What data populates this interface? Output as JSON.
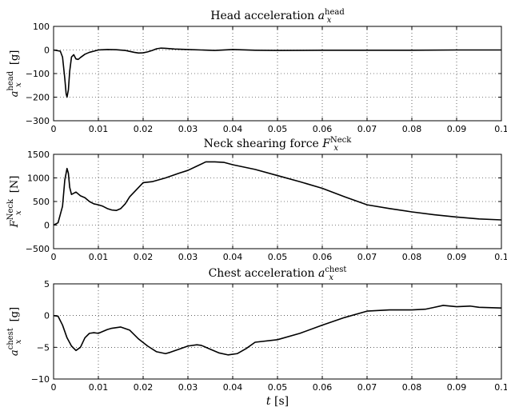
{
  "chart_data": [
    {
      "type": "line",
      "title": "Head acceleration a_x^head",
      "title_main": "Head acceleration ",
      "title_sym": "a",
      "title_sub": "x",
      "title_sup": "head",
      "ylabel": "a_x^head [g]",
      "ylabel_sym": "a",
      "ylabel_sub": "x",
      "ylabel_sup": "head",
      "ylabel_unit": "[g]",
      "xlim": [
        0,
        0.1
      ],
      "ylim": [
        -300,
        100
      ],
      "xticks": [
        0,
        0.01,
        0.02,
        0.03,
        0.04,
        0.05,
        0.06,
        0.07,
        0.08,
        0.09,
        0.1
      ],
      "xtick_labels": [
        "0",
        "0.01",
        "0.02",
        "0.03",
        "0.04",
        "0.05",
        "0.06",
        "0.07",
        "0.08",
        "0.09",
        "0.1"
      ],
      "yticks": [
        100,
        0,
        -100,
        -200,
        -300
      ],
      "ytick_labels": [
        "100",
        "0",
        "−100",
        "−200",
        "−300"
      ],
      "grid": true,
      "series": [
        {
          "x": [
            0,
            0.0015,
            0.002,
            0.0025,
            0.0028,
            0.003,
            0.0033,
            0.0036,
            0.004,
            0.0045,
            0.005,
            0.0055,
            0.006,
            0.007,
            0.008,
            0.009,
            0.01,
            0.012,
            0.014,
            0.016,
            0.018,
            0.019,
            0.02,
            0.021,
            0.022,
            0.023,
            0.024,
            0.025,
            0.027,
            0.03,
            0.033,
            0.036,
            0.04,
            0.045,
            0.05,
            0.06,
            0.07,
            0.08,
            0.09,
            0.1
          ],
          "y": [
            0,
            -5,
            -30,
            -120,
            -185,
            -200,
            -170,
            -90,
            -30,
            -20,
            -38,
            -40,
            -32,
            -18,
            -10,
            -5,
            0,
            2,
            1,
            -2,
            -10,
            -13,
            -12,
            -8,
            -2,
            5,
            8,
            7,
            4,
            2,
            0,
            -2,
            2,
            -1,
            -2,
            -1,
            -1,
            -1,
            0,
            0
          ]
        }
      ]
    },
    {
      "type": "line",
      "title": "Neck shearing force F_x^Neck",
      "title_main": "Neck shearing force ",
      "title_sym": "F",
      "title_sub": "x",
      "title_sup": "Neck",
      "ylabel": "F_x^Neck [N]",
      "ylabel_sym": "F",
      "ylabel_sub": "x",
      "ylabel_sup": "Neck",
      "ylabel_unit": "[N]",
      "xlim": [
        0,
        0.1
      ],
      "ylim": [
        -500,
        1500
      ],
      "xticks": [
        0,
        0.01,
        0.02,
        0.03,
        0.04,
        0.05,
        0.06,
        0.07,
        0.08,
        0.09,
        0.1
      ],
      "xtick_labels": [
        "0",
        "0.01",
        "0.02",
        "0.03",
        "0.04",
        "0.05",
        "0.06",
        "0.07",
        "0.08",
        "0.09",
        "0.1"
      ],
      "yticks": [
        1500,
        1000,
        500,
        0,
        -500
      ],
      "ytick_labels": [
        "1500",
        "1000",
        "500",
        "0",
        "−500"
      ],
      "grid": true,
      "series": [
        {
          "x": [
            0,
            0.001,
            0.002,
            0.0025,
            0.003,
            0.0033,
            0.0036,
            0.004,
            0.005,
            0.006,
            0.007,
            0.008,
            0.009,
            0.01,
            0.011,
            0.012,
            0.013,
            0.014,
            0.015,
            0.016,
            0.017,
            0.018,
            0.019,
            0.02,
            0.022,
            0.025,
            0.028,
            0.03,
            0.032,
            0.034,
            0.036,
            0.038,
            0.04,
            0.045,
            0.05,
            0.055,
            0.06,
            0.065,
            0.07,
            0.075,
            0.08,
            0.085,
            0.09,
            0.095,
            0.1
          ],
          "y": [
            0,
            50,
            400,
            950,
            1200,
            1100,
            800,
            650,
            700,
            620,
            580,
            500,
            450,
            430,
            400,
            350,
            320,
            310,
            350,
            450,
            600,
            700,
            800,
            900,
            920,
            1000,
            1100,
            1160,
            1250,
            1340,
            1340,
            1330,
            1280,
            1180,
            1050,
            920,
            780,
            600,
            430,
            350,
            280,
            220,
            170,
            130,
            110
          ]
        }
      ]
    },
    {
      "type": "line",
      "title": "Chest acceleration a_x^chest",
      "title_main": "Chest acceleration ",
      "title_sym": "a",
      "title_sub": "x",
      "title_sup": "chest",
      "ylabel": "a_x^chest [g]",
      "ylabel_sym": "a",
      "ylabel_sub": "x",
      "ylabel_sup": "chest",
      "ylabel_unit": "[g]",
      "xlabel": "t [s]",
      "xlabel_sym": "t",
      "xlabel_unit": "[s]",
      "xlim": [
        0,
        0.1
      ],
      "ylim": [
        -10,
        5
      ],
      "xticks": [
        0,
        0.01,
        0.02,
        0.03,
        0.04,
        0.05,
        0.06,
        0.07,
        0.08,
        0.09,
        0.1
      ],
      "xtick_labels": [
        "0",
        "0.01",
        "0.02",
        "0.03",
        "0.04",
        "0.05",
        "0.06",
        "0.07",
        "0.08",
        "0.09",
        "0.1"
      ],
      "yticks": [
        5,
        0,
        -5,
        -10
      ],
      "ytick_labels": [
        "5",
        "0",
        "−5",
        "−10"
      ],
      "grid": true,
      "series": [
        {
          "x": [
            0,
            0.001,
            0.002,
            0.003,
            0.004,
            0.005,
            0.006,
            0.007,
            0.008,
            0.009,
            0.01,
            0.011,
            0.012,
            0.013,
            0.015,
            0.017,
            0.019,
            0.021,
            0.023,
            0.025,
            0.026,
            0.028,
            0.03,
            0.032,
            0.033,
            0.035,
            0.037,
            0.039,
            0.041,
            0.043,
            0.045,
            0.05,
            0.055,
            0.06,
            0.065,
            0.07,
            0.075,
            0.08,
            0.083,
            0.085,
            0.087,
            0.09,
            0.093,
            0.095,
            0.1
          ],
          "y": [
            0,
            -0.1,
            -1.5,
            -3.5,
            -4.8,
            -5.5,
            -5,
            -3.5,
            -2.8,
            -2.7,
            -2.8,
            -2.5,
            -2.2,
            -2,
            -1.8,
            -2.3,
            -3.7,
            -4.8,
            -5.7,
            -6,
            -5.8,
            -5.3,
            -4.8,
            -4.6,
            -4.7,
            -5.3,
            -5.9,
            -6.2,
            -6.0,
            -5.2,
            -4.2,
            -3.8,
            -2.8,
            -1.5,
            -0.3,
            0.7,
            0.9,
            0.9,
            1.0,
            1.3,
            1.6,
            1.4,
            1.5,
            1.3,
            1.2
          ]
        }
      ]
    }
  ]
}
